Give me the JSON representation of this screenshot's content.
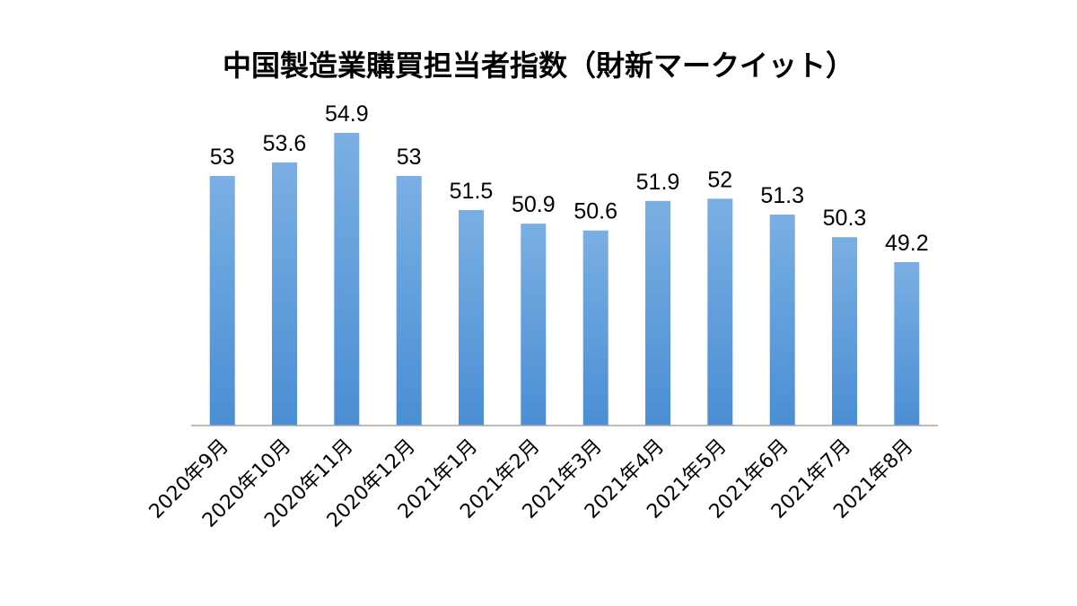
{
  "chart_data": {
    "type": "bar",
    "title": "中国製造業購買担当者指数（財新マークイット）",
    "xlabel": "",
    "ylabel": "",
    "categories": [
      "2020年9月",
      "2020年10月",
      "2020年11月",
      "2020年12月",
      "2021年1月",
      "2021年2月",
      "2021年3月",
      "2021年4月",
      "2021年5月",
      "2021年6月",
      "2021年7月",
      "2021年8月"
    ],
    "values": [
      53,
      53.6,
      54.9,
      53,
      51.5,
      50.9,
      50.6,
      51.9,
      52,
      51.3,
      50.3,
      49.2
    ],
    "value_labels": [
      "53",
      "53.6",
      "54.9",
      "53",
      "51.5",
      "50.9",
      "50.6",
      "51.9",
      "52",
      "51.3",
      "50.3",
      "49.2"
    ],
    "ylim": [
      42,
      55.5
    ],
    "grid": false,
    "legend": "none",
    "colors": {
      "bar_light": "#7AAFE3",
      "bar_dark": "#4A8ED4",
      "axis": "#A6A6A6"
    }
  }
}
